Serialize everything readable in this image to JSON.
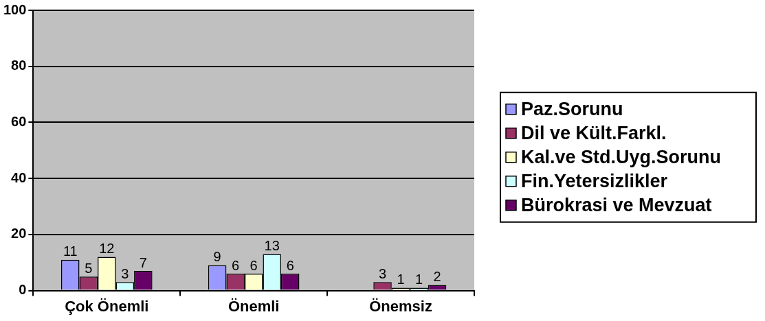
{
  "chart_data": {
    "type": "bar",
    "categories": [
      "Çok Önemli",
      "Önemli",
      "Önemsiz"
    ],
    "series": [
      {
        "name": "Paz.Sorunu",
        "color": "#9999ff",
        "values": [
          11,
          9,
          null
        ]
      },
      {
        "name": "Dil ve Kült.Farkl.",
        "color": "#993366",
        "values": [
          5,
          6,
          3
        ]
      },
      {
        "name": "Kal.ve Std.Uyg.Sorunu",
        "color": "#ffffcc",
        "values": [
          12,
          6,
          1
        ]
      },
      {
        "name": "Fin.Yetersizlikler",
        "color": "#ccffff",
        "values": [
          3,
          13,
          1
        ]
      },
      {
        "name": "Bürokrasi ve Mevzuat",
        "color": "#660066",
        "values": [
          7,
          6,
          2
        ]
      }
    ],
    "ylim": [
      0,
      100
    ],
    "yticks": [
      0,
      20,
      40,
      60,
      80,
      100
    ],
    "grid": "y",
    "legend": "right",
    "data_labels": true
  }
}
